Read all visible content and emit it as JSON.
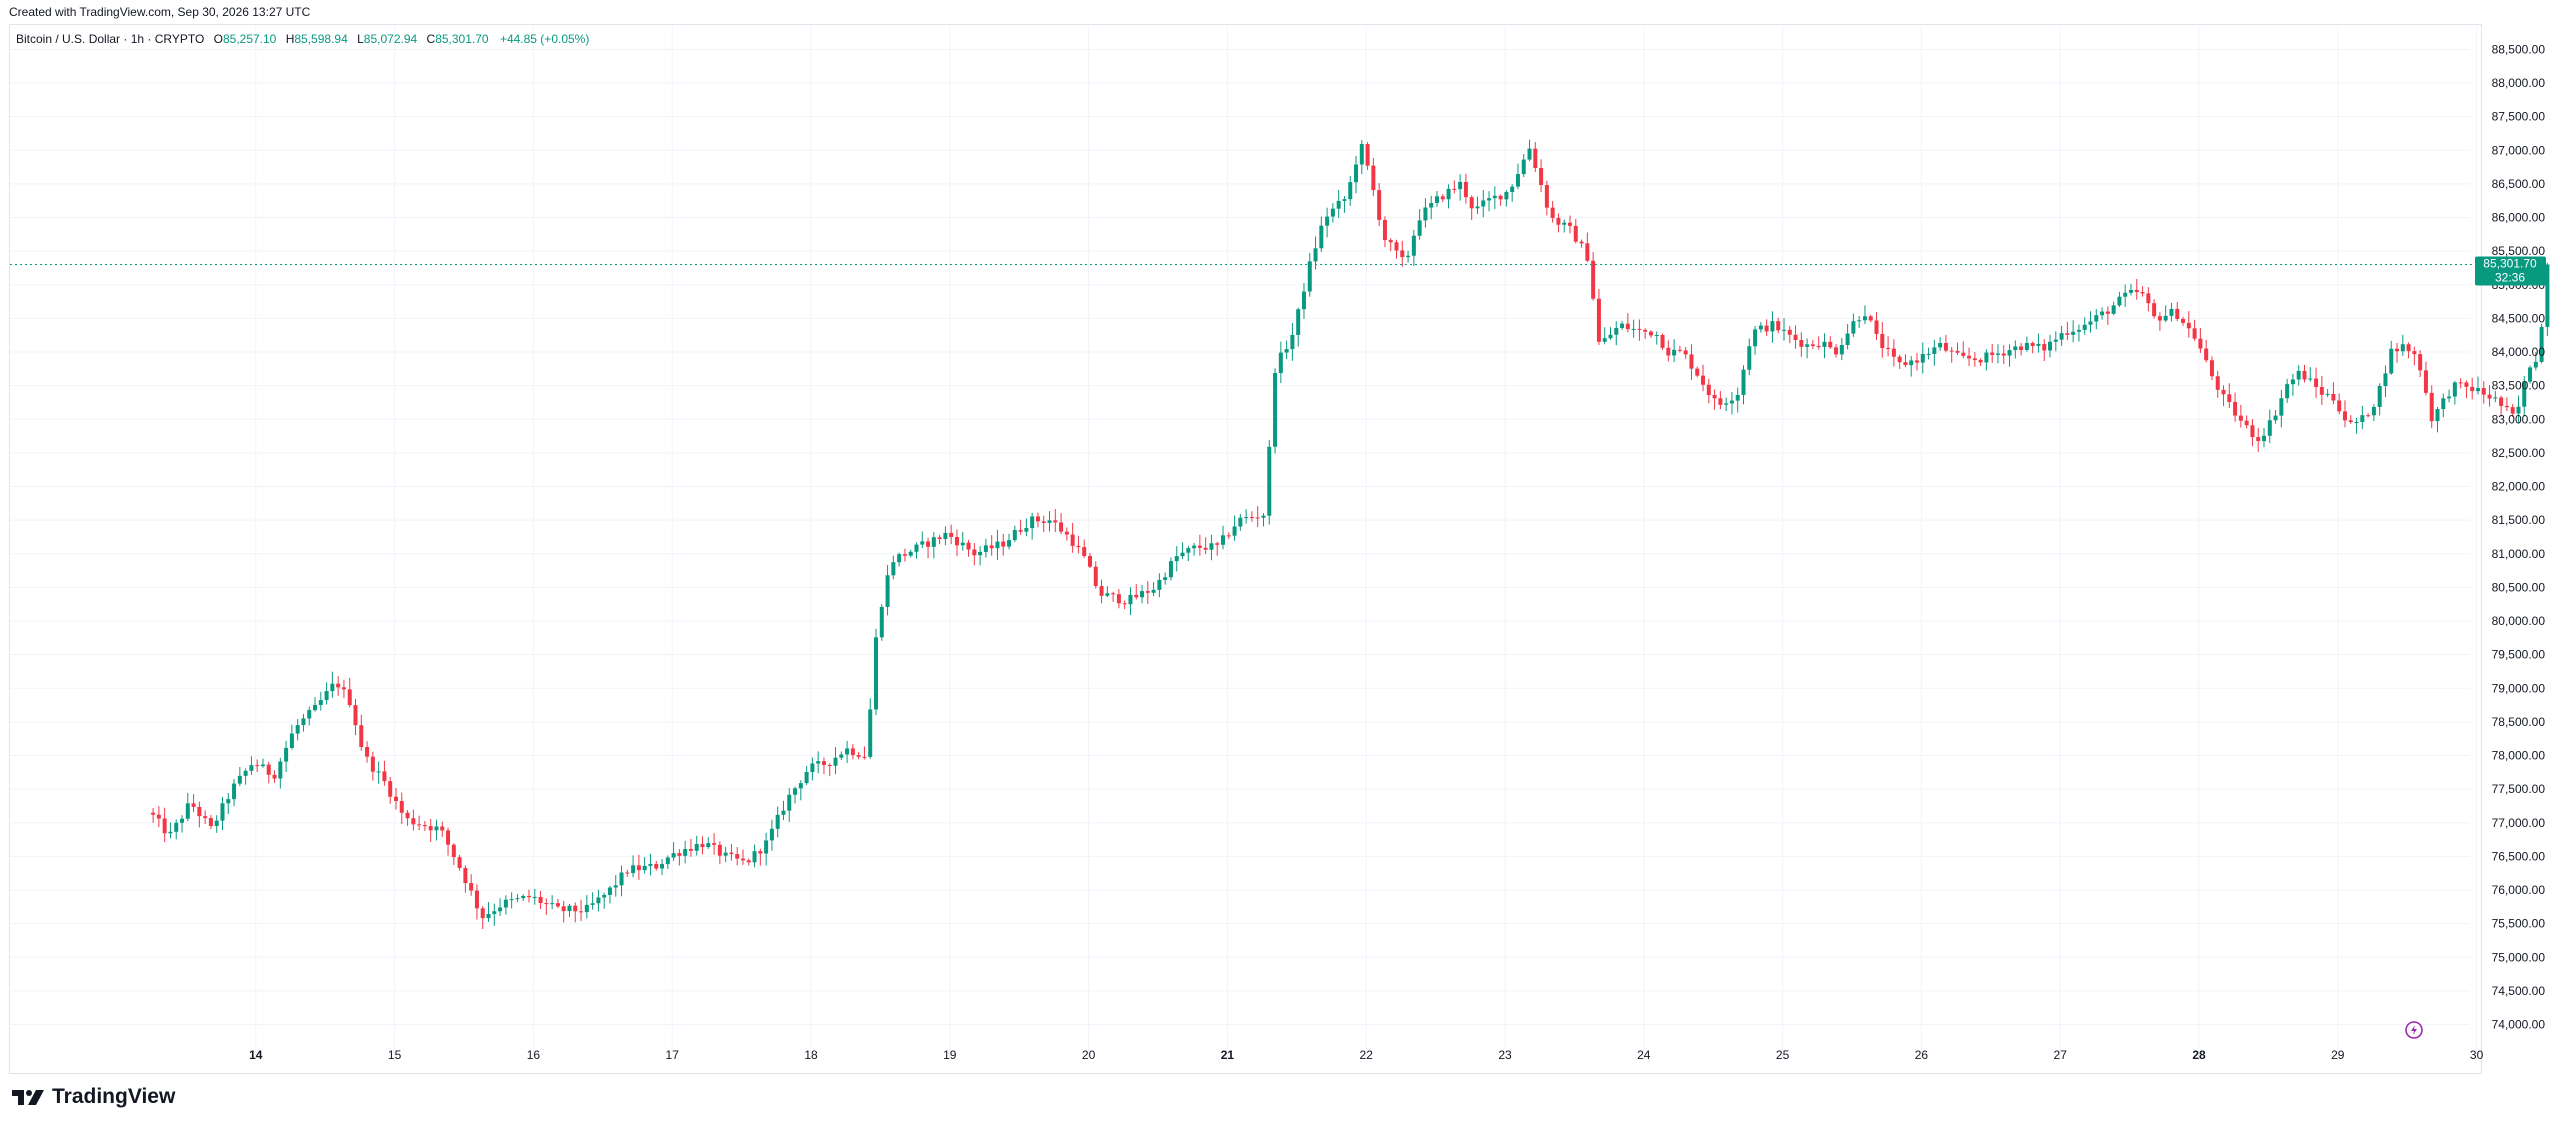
{
  "header": {
    "created_with": "Created with TradingView.com, Sep 30, 2026 13:27 UTC"
  },
  "legend": {
    "symbol": "Bitcoin / U.S. Dollar · 1h · CRYPTO",
    "o_label": "O",
    "o_value": "85,257.10",
    "h_label": "H",
    "h_value": "85,598.94",
    "l_label": "L",
    "l_value": "85,072.94",
    "c_label": "C",
    "c_value": "85,301.70",
    "change": "+44.85 (+0.05%)"
  },
  "price_tag": {
    "price": "85,301.70",
    "countdown": "32:36"
  },
  "brand": {
    "name": "TradingView"
  },
  "colors": {
    "up": "#089981",
    "down": "#f23645",
    "grid": "#f0f3fa",
    "text": "#131722",
    "accent_purple": "#9c27b0"
  },
  "chart_data": {
    "type": "candlestick",
    "title": "Bitcoin / U.S. Dollar · 1h · CRYPTO",
    "timeframe": "1h",
    "ylim": [
      73700,
      88900
    ],
    "y_ticks": [
      74000,
      74500,
      75000,
      75500,
      76000,
      76500,
      77000,
      77500,
      78000,
      78500,
      79000,
      79500,
      80000,
      80500,
      81000,
      81500,
      82000,
      82500,
      83000,
      83500,
      84000,
      84500,
      85000,
      85500,
      86000,
      86500,
      87000,
      87500,
      88000,
      88500
    ],
    "x_ticks": [
      {
        "label": "14",
        "bold": true,
        "day": 1
      },
      {
        "label": "15",
        "bold": false,
        "day": 2
      },
      {
        "label": "16",
        "bold": false,
        "day": 3
      },
      {
        "label": "17",
        "bold": false,
        "day": 4
      },
      {
        "label": "18",
        "bold": false,
        "day": 5
      },
      {
        "label": "19",
        "bold": false,
        "day": 6
      },
      {
        "label": "20",
        "bold": false,
        "day": 7
      },
      {
        "label": "21",
        "bold": true,
        "day": 8
      },
      {
        "label": "22",
        "bold": false,
        "day": 9
      },
      {
        "label": "23",
        "bold": false,
        "day": 10
      },
      {
        "label": "24",
        "bold": false,
        "day": 11
      },
      {
        "label": "25",
        "bold": false,
        "day": 12
      },
      {
        "label": "26",
        "bold": false,
        "day": 13
      },
      {
        "label": "27",
        "bold": false,
        "day": 14
      },
      {
        "label": "28",
        "bold": true,
        "day": 15
      },
      {
        "label": "29",
        "bold": false,
        "day": 16
      },
      {
        "label": "30",
        "bold": false,
        "day": 17
      }
    ],
    "start_day": 0.26,
    "last_price": 85301.7,
    "grid": true,
    "anchors": [
      {
        "d": 0.26,
        "p": 77150
      },
      {
        "d": 0.4,
        "p": 76800
      },
      {
        "d": 0.55,
        "p": 77300
      },
      {
        "d": 0.7,
        "p": 76900
      },
      {
        "d": 0.85,
        "p": 77500
      },
      {
        "d": 1.0,
        "p": 77900
      },
      {
        "d": 1.15,
        "p": 77700
      },
      {
        "d": 1.3,
        "p": 78400
      },
      {
        "d": 1.45,
        "p": 78700
      },
      {
        "d": 1.6,
        "p": 79100
      },
      {
        "d": 1.7,
        "p": 78800
      },
      {
        "d": 1.8,
        "p": 78000
      },
      {
        "d": 1.95,
        "p": 77600
      },
      {
        "d": 2.1,
        "p": 77050
      },
      {
        "d": 2.35,
        "p": 76900
      },
      {
        "d": 2.5,
        "p": 76300
      },
      {
        "d": 2.65,
        "p": 75600
      },
      {
        "d": 2.8,
        "p": 75800
      },
      {
        "d": 3.0,
        "p": 75900
      },
      {
        "d": 3.2,
        "p": 75700
      },
      {
        "d": 3.4,
        "p": 75700
      },
      {
        "d": 3.55,
        "p": 75950
      },
      {
        "d": 3.7,
        "p": 76300
      },
      {
        "d": 3.9,
        "p": 76350
      },
      {
        "d": 4.0,
        "p": 76500
      },
      {
        "d": 4.1,
        "p": 76600
      },
      {
        "d": 4.25,
        "p": 76700
      },
      {
        "d": 4.4,
        "p": 76500
      },
      {
        "d": 4.55,
        "p": 76400
      },
      {
        "d": 4.7,
        "p": 76700
      },
      {
        "d": 4.85,
        "p": 77350
      },
      {
        "d": 5.0,
        "p": 77800
      },
      {
        "d": 5.15,
        "p": 77900
      },
      {
        "d": 5.27,
        "p": 78100
      },
      {
        "d": 5.42,
        "p": 78000
      },
      {
        "d": 5.5,
        "p": 80000
      },
      {
        "d": 5.6,
        "p": 80900
      },
      {
        "d": 5.8,
        "p": 81100
      },
      {
        "d": 6.0,
        "p": 81300
      },
      {
        "d": 6.2,
        "p": 81000
      },
      {
        "d": 6.4,
        "p": 81150
      },
      {
        "d": 6.6,
        "p": 81500
      },
      {
        "d": 6.75,
        "p": 81500
      },
      {
        "d": 6.9,
        "p": 81200
      },
      {
        "d": 7.0,
        "p": 80900
      },
      {
        "d": 7.1,
        "p": 80400
      },
      {
        "d": 7.3,
        "p": 80300
      },
      {
        "d": 7.5,
        "p": 80500
      },
      {
        "d": 7.65,
        "p": 80950
      },
      {
        "d": 7.8,
        "p": 81100
      },
      {
        "d": 7.95,
        "p": 81100
      },
      {
        "d": 8.1,
        "p": 81500
      },
      {
        "d": 8.3,
        "p": 81600
      },
      {
        "d": 8.35,
        "p": 83700
      },
      {
        "d": 8.5,
        "p": 84300
      },
      {
        "d": 8.6,
        "p": 85200
      },
      {
        "d": 8.72,
        "p": 86000
      },
      {
        "d": 8.88,
        "p": 86300
      },
      {
        "d": 8.98,
        "p": 87100
      },
      {
        "d": 9.05,
        "p": 86600
      },
      {
        "d": 9.15,
        "p": 85700
      },
      {
        "d": 9.3,
        "p": 85300
      },
      {
        "d": 9.4,
        "p": 86000
      },
      {
        "d": 9.55,
        "p": 86300
      },
      {
        "d": 9.7,
        "p": 86500
      },
      {
        "d": 9.8,
        "p": 86100
      },
      {
        "d": 9.9,
        "p": 86250
      },
      {
        "d": 10.05,
        "p": 86400
      },
      {
        "d": 10.2,
        "p": 87050
      },
      {
        "d": 10.35,
        "p": 86000
      },
      {
        "d": 10.5,
        "p": 85800
      },
      {
        "d": 10.62,
        "p": 85400
      },
      {
        "d": 10.7,
        "p": 84100
      },
      {
        "d": 10.85,
        "p": 84400
      },
      {
        "d": 11.0,
        "p": 84300
      },
      {
        "d": 11.1,
        "p": 84300
      },
      {
        "d": 11.2,
        "p": 84000
      },
      {
        "d": 11.3,
        "p": 84000
      },
      {
        "d": 11.4,
        "p": 83700
      },
      {
        "d": 11.55,
        "p": 83200
      },
      {
        "d": 11.7,
        "p": 83400
      },
      {
        "d": 11.8,
        "p": 84300
      },
      {
        "d": 11.95,
        "p": 84400
      },
      {
        "d": 12.1,
        "p": 84200
      },
      {
        "d": 12.2,
        "p": 84100
      },
      {
        "d": 12.3,
        "p": 84150
      },
      {
        "d": 12.4,
        "p": 84000
      },
      {
        "d": 12.55,
        "p": 84500
      },
      {
        "d": 12.62,
        "p": 84600
      },
      {
        "d": 12.7,
        "p": 84200
      },
      {
        "d": 12.85,
        "p": 83800
      },
      {
        "d": 13.0,
        "p": 83900
      },
      {
        "d": 13.15,
        "p": 84100
      },
      {
        "d": 13.3,
        "p": 83900
      },
      {
        "d": 13.45,
        "p": 83900
      },
      {
        "d": 13.6,
        "p": 84000
      },
      {
        "d": 13.75,
        "p": 84100
      },
      {
        "d": 13.9,
        "p": 84050
      },
      {
        "d": 14.05,
        "p": 84300
      },
      {
        "d": 14.2,
        "p": 84400
      },
      {
        "d": 14.35,
        "p": 84600
      },
      {
        "d": 14.5,
        "p": 84850
      },
      {
        "d": 14.6,
        "p": 84900
      },
      {
        "d": 14.7,
        "p": 84500
      },
      {
        "d": 14.85,
        "p": 84600
      },
      {
        "d": 15.0,
        "p": 84200
      },
      {
        "d": 15.1,
        "p": 83700
      },
      {
        "d": 15.2,
        "p": 83300
      },
      {
        "d": 15.35,
        "p": 82900
      },
      {
        "d": 15.45,
        "p": 82700
      },
      {
        "d": 15.55,
        "p": 83000
      },
      {
        "d": 15.65,
        "p": 83500
      },
      {
        "d": 15.75,
        "p": 83700
      },
      {
        "d": 15.9,
        "p": 83400
      },
      {
        "d": 16.0,
        "p": 83300
      },
      {
        "d": 16.1,
        "p": 82900
      },
      {
        "d": 16.2,
        "p": 83000
      },
      {
        "d": 16.3,
        "p": 83300
      },
      {
        "d": 16.4,
        "p": 84000
      },
      {
        "d": 16.5,
        "p": 84100
      },
      {
        "d": 16.6,
        "p": 83900
      },
      {
        "d": 16.7,
        "p": 83000
      },
      {
        "d": 16.85,
        "p": 83500
      },
      {
        "d": 17.0,
        "p": 83450
      },
      {
        "d": 17.15,
        "p": 83300
      },
      {
        "d": 17.3,
        "p": 83000
      },
      {
        "d": 17.4,
        "p": 83800
      },
      {
        "d": 17.48,
        "p": 84000
      },
      {
        "d": 17.51,
        "p": 85200
      },
      {
        "d": 17.55,
        "p": 85300
      }
    ]
  }
}
